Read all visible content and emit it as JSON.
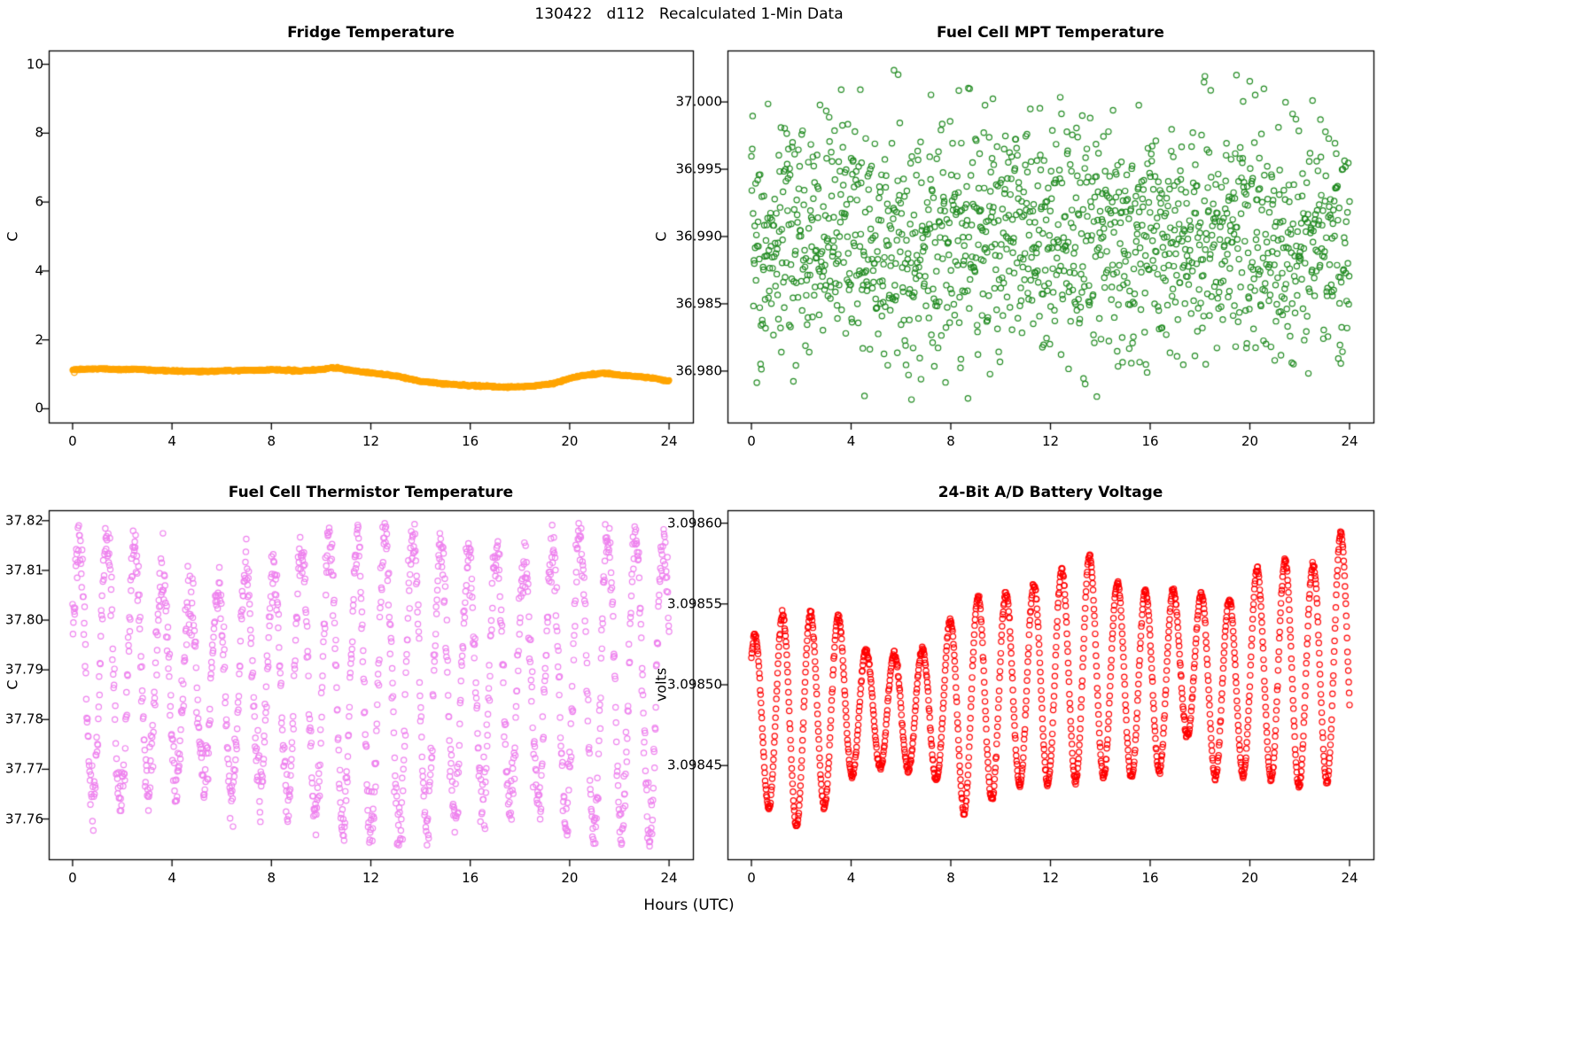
{
  "header": {
    "title": "130422   d112   Recalculated 1-Min Data"
  },
  "footer": {
    "xlabel": "Hours (UTC)"
  },
  "chart_data": [
    {
      "id": "fridge-temperature",
      "type": "scatter",
      "title": "Fridge Temperature",
      "ylabel": "C",
      "color": "#FFA500",
      "marker": "filled-circle",
      "n_points": 1440,
      "xlim": [
        0,
        24
      ],
      "ylim": [
        0,
        10
      ],
      "xticks": [
        0,
        4,
        8,
        12,
        16,
        20,
        24
      ],
      "xtick_labels": [
        "0",
        "4",
        "8",
        "12",
        "16",
        "20",
        "24"
      ],
      "yticks": [
        0,
        2,
        4,
        6,
        8,
        10
      ],
      "ytick_labels": [
        "0",
        "2",
        "4",
        "6",
        "8",
        "10"
      ],
      "noise_sd": 0.012,
      "outlier_point": [
        0.07,
        1.05
      ],
      "control_points": [
        [
          0,
          1.13
        ],
        [
          0.5,
          1.15
        ],
        [
          1,
          1.16
        ],
        [
          1.5,
          1.15
        ],
        [
          2,
          1.14
        ],
        [
          2.5,
          1.15
        ],
        [
          3,
          1.13
        ],
        [
          3.5,
          1.11
        ],
        [
          4,
          1.1
        ],
        [
          4.5,
          1.09
        ],
        [
          5,
          1.08
        ],
        [
          5.5,
          1.09
        ],
        [
          6,
          1.1
        ],
        [
          6.5,
          1.11
        ],
        [
          7,
          1.12
        ],
        [
          7.5,
          1.12
        ],
        [
          8,
          1.13
        ],
        [
          8.5,
          1.12
        ],
        [
          9,
          1.1
        ],
        [
          9.5,
          1.11
        ],
        [
          10,
          1.14
        ],
        [
          10.4,
          1.19
        ],
        [
          10.8,
          1.17
        ],
        [
          11.2,
          1.12
        ],
        [
          12,
          1.04
        ],
        [
          12.5,
          1.0
        ],
        [
          13,
          0.95
        ],
        [
          13.5,
          0.88
        ],
        [
          14,
          0.8
        ],
        [
          14.5,
          0.76
        ],
        [
          15,
          0.72
        ],
        [
          15.5,
          0.7
        ],
        [
          16,
          0.67
        ],
        [
          16.5,
          0.66
        ],
        [
          17,
          0.64
        ],
        [
          17.5,
          0.63
        ],
        [
          18,
          0.64
        ],
        [
          18.5,
          0.66
        ],
        [
          19,
          0.7
        ],
        [
          19.5,
          0.76
        ],
        [
          20,
          0.88
        ],
        [
          20.5,
          0.97
        ],
        [
          21,
          1.0
        ],
        [
          21.3,
          1.03
        ],
        [
          21.6,
          1.02
        ],
        [
          22,
          0.98
        ],
        [
          22.5,
          0.95
        ],
        [
          23,
          0.92
        ],
        [
          23.5,
          0.87
        ],
        [
          24,
          0.8
        ]
      ]
    },
    {
      "id": "fuel-cell-mpt-temperature",
      "type": "scatter",
      "title": "Fuel Cell MPT Temperature",
      "ylabel": "C",
      "color": "#228B22",
      "marker": "open-circle",
      "n_points": 1440,
      "xlim": [
        0,
        24
      ],
      "ylim": [
        36.9772,
        37.0028
      ],
      "xticks": [
        0,
        4,
        8,
        12,
        16,
        20,
        24
      ],
      "xtick_labels": [
        "0",
        "4",
        "8",
        "12",
        "16",
        "20",
        "24"
      ],
      "yticks": [
        36.98,
        36.985,
        36.99,
        36.995,
        37.0
      ],
      "ytick_labels": [
        "36.980",
        "36.985",
        "36.990",
        "36.995",
        "37.000"
      ],
      "distribution": {
        "kind": "normal",
        "mean": 36.9897,
        "sd": 0.0046,
        "clip": [
          36.9776,
          37.0026
        ]
      }
    },
    {
      "id": "fuel-cell-thermistor-temperature",
      "type": "scatter",
      "title": "Fuel Cell Thermistor Temperature",
      "ylabel": "C",
      "color": "#EE82EE",
      "marker": "open-circle",
      "n_points": 1440,
      "xlim": [
        0,
        24
      ],
      "ylim": [
        37.7545,
        37.8195
      ],
      "xticks": [
        0,
        4,
        8,
        12,
        16,
        20,
        24
      ],
      "xtick_labels": [
        "0",
        "4",
        "8",
        "12",
        "16",
        "20",
        "24"
      ],
      "yticks": [
        37.76,
        37.77,
        37.78,
        37.79,
        37.8,
        37.81,
        37.82
      ],
      "ytick_labels": [
        "37.76",
        "37.77",
        "37.78",
        "37.79",
        "37.80",
        "37.81",
        "37.82"
      ],
      "oscillation": {
        "period_hours": 1.12,
        "peak_time": 0.25,
        "noise_sd": 0.0032,
        "clip": [
          37.7545,
          37.8195
        ],
        "midline_points": [
          [
            0,
            37.79
          ],
          [
            3,
            37.789
          ],
          [
            5,
            37.786
          ],
          [
            8,
            37.788
          ],
          [
            12,
            37.787
          ],
          [
            16,
            37.788
          ],
          [
            20,
            37.788
          ],
          [
            24,
            37.787
          ]
        ],
        "amplitude_points": [
          [
            0,
            0.026
          ],
          [
            2,
            0.028
          ],
          [
            4,
            0.02
          ],
          [
            5,
            0.018
          ],
          [
            6,
            0.02
          ],
          [
            7,
            0.024
          ],
          [
            8,
            0.022
          ],
          [
            9,
            0.026
          ],
          [
            10,
            0.028
          ],
          [
            11,
            0.03
          ],
          [
            12,
            0.031
          ],
          [
            13,
            0.03
          ],
          [
            14,
            0.031
          ],
          [
            15,
            0.026
          ],
          [
            16,
            0.025
          ],
          [
            17,
            0.026
          ],
          [
            18,
            0.024
          ],
          [
            19,
            0.026
          ],
          [
            20,
            0.03
          ],
          [
            21,
            0.031
          ],
          [
            22,
            0.03
          ],
          [
            23,
            0.03
          ],
          [
            24,
            0.03
          ]
        ]
      }
    },
    {
      "id": "battery-voltage",
      "type": "scatter",
      "title": "24-Bit A/D Battery Voltage",
      "ylabel": "volts",
      "color": "#FF0000",
      "marker": "open-circle",
      "n_points": 1440,
      "xlim": [
        0,
        24
      ],
      "ylim": [
        3.0984,
        3.0986
      ],
      "xticks": [
        0,
        4,
        8,
        12,
        16,
        20,
        24
      ],
      "xtick_labels": [
        "0",
        "4",
        "8",
        "12",
        "16",
        "20",
        "24"
      ],
      "yticks": [
        3.09845,
        3.0985,
        3.09855,
        3.0986
      ],
      "ytick_labels": [
        "3.09845",
        "3.09850",
        "3.09855",
        "3.09860"
      ],
      "oscillation": {
        "period_hours": 1.12,
        "peak_time": 1.25,
        "noise_sd": 1e-06,
        "clip": [
          3.098405,
          3.0986
        ],
        "peak_points": [
          [
            0,
            3.09853
          ],
          [
            1.25,
            3.098544
          ],
          [
            2.37,
            3.098545
          ],
          [
            3.49,
            3.098543
          ],
          [
            4.61,
            3.098521
          ],
          [
            5.73,
            3.098519
          ],
          [
            6.85,
            3.098522
          ],
          [
            7.97,
            3.09854
          ],
          [
            9.09,
            3.098555
          ],
          [
            10.21,
            3.098557
          ],
          [
            11.33,
            3.098562
          ],
          [
            12.45,
            3.098571
          ],
          [
            13.57,
            3.09858
          ],
          [
            14.69,
            3.098563
          ],
          [
            15.81,
            3.098558
          ],
          [
            16.93,
            3.098559
          ],
          [
            18.05,
            3.098557
          ],
          [
            19.17,
            3.098552
          ],
          [
            20.29,
            3.098572
          ],
          [
            21.41,
            3.098577
          ],
          [
            22.53,
            3.098574
          ],
          [
            23.65,
            3.098594
          ],
          [
            24,
            3.09859
          ]
        ],
        "trough_points": [
          [
            0,
            3.098428
          ],
          [
            0.69,
            3.098424
          ],
          [
            1.81,
            3.098412
          ],
          [
            2.93,
            3.098424
          ],
          [
            4.05,
            3.098444
          ],
          [
            5.17,
            3.098449
          ],
          [
            6.29,
            3.098447
          ],
          [
            7.41,
            3.098441
          ],
          [
            8.53,
            3.09842
          ],
          [
            9.65,
            3.098429
          ],
          [
            10.77,
            3.098438
          ],
          [
            11.89,
            3.098439
          ],
          [
            13.01,
            3.09844
          ],
          [
            14.13,
            3.098443
          ],
          [
            15.25,
            3.098442
          ],
          [
            16.37,
            3.098446
          ],
          [
            17.49,
            3.09847
          ],
          [
            18.61,
            3.098442
          ],
          [
            19.73,
            3.098444
          ],
          [
            20.85,
            3.098441
          ],
          [
            21.97,
            3.098437
          ],
          [
            23.09,
            3.09844
          ],
          [
            24,
            3.098443
          ]
        ]
      }
    }
  ]
}
